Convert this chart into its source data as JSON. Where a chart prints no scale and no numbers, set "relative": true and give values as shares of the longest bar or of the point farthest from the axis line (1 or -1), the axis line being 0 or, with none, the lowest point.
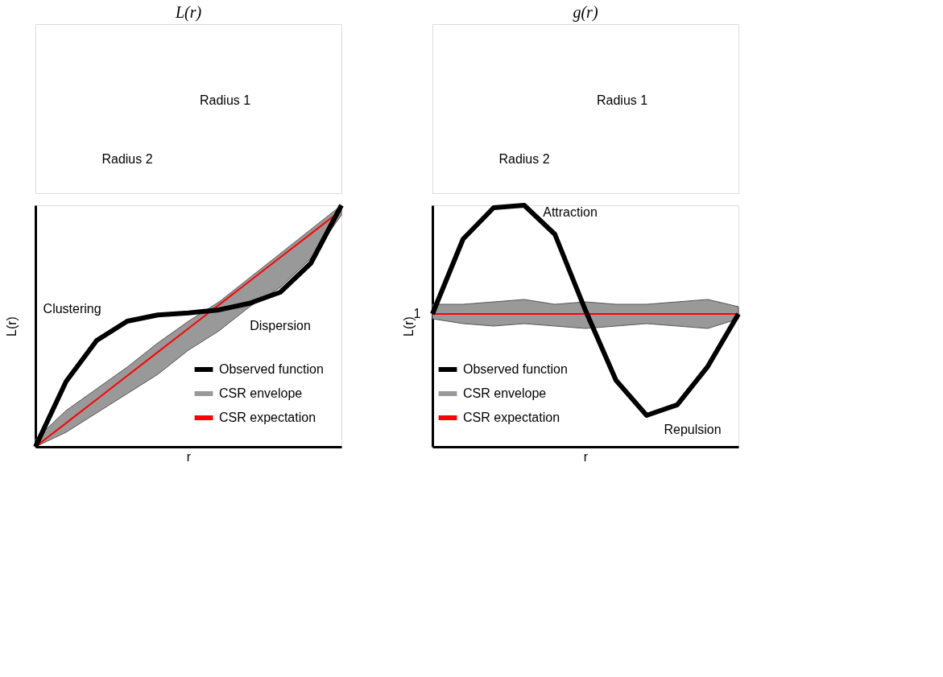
{
  "chart_data": [
    {
      "type": "other",
      "title": "L(r)",
      "annotations": [
        "Radius 1",
        "Radius 2"
      ]
    },
    {
      "type": "line",
      "relative": true,
      "xlabel": "r",
      "ylabel": "L(r)",
      "legend": "bottom right",
      "grid": false,
      "categories": [
        null,
        null,
        null,
        null,
        null,
        null,
        null,
        null,
        null,
        null,
        null
      ],
      "annotations": [
        "Clustering",
        "Dispersion"
      ],
      "series": [
        {
          "name": "Observed function",
          "color": "#000000",
          "values": [
            0,
            0.27,
            0.44,
            0.52,
            0.546,
            0.554,
            0.567,
            0.594,
            0.64,
            0.76,
            1.0
          ]
        },
        {
          "name": "CSR envelope",
          "type": "area",
          "color": "#999999",
          "values": [
            null,
            null,
            null,
            null,
            null,
            null,
            null,
            null,
            null,
            null,
            null
          ],
          "lower": [
            0,
            0.06,
            0.14,
            0.22,
            0.3,
            0.4,
            0.48,
            0.58,
            0.66,
            0.78,
            0.96
          ],
          "upper": [
            0.03,
            0.15,
            0.24,
            0.33,
            0.43,
            0.52,
            0.6,
            0.7,
            0.8,
            0.9,
            1.0
          ]
        },
        {
          "name": "CSR expectation",
          "color": "#ff0000",
          "values": [
            0,
            0.098,
            0.196,
            0.294,
            0.392,
            0.49,
            0.588,
            0.686,
            0.784,
            0.882,
            0.98
          ]
        }
      ]
    },
    {
      "type": "other",
      "title": "g(r)",
      "annotations": [
        "Radius 1",
        "Radius 2"
      ]
    },
    {
      "type": "line",
      "relative": true,
      "xlabel": "r",
      "ylabel": "L(r)",
      "legend": "bottom left",
      "grid": false,
      "categories": [
        null,
        null,
        null,
        null,
        null,
        null,
        null,
        null,
        null,
        null,
        null
      ],
      "annotations": [
        "Attraction",
        "Repulsion",
        "1"
      ],
      "series": [
        {
          "name": "Observed function",
          "color": "#000000",
          "values": [
            0.55,
            0.86,
            0.99,
            1.0,
            0.88,
            0.565,
            0.275,
            0.13,
            0.174,
            0.333,
            0.55
          ]
        },
        {
          "name": "CSR envelope",
          "type": "area",
          "color": "#999999",
          "values": [
            null,
            null,
            null,
            null,
            null,
            null,
            null,
            null,
            null,
            null,
            null
          ],
          "lower": [
            0.53,
            0.51,
            0.5,
            0.51,
            0.5,
            0.49,
            0.5,
            0.51,
            0.5,
            0.49,
            0.53
          ],
          "upper": [
            0.59,
            0.59,
            0.6,
            0.61,
            0.59,
            0.6,
            0.59,
            0.59,
            0.6,
            0.61,
            0.58
          ]
        },
        {
          "name": "CSR expectation",
          "color": "#ff0000",
          "values": [
            0.55,
            0.55,
            0.55,
            0.55,
            0.55,
            0.55,
            0.55,
            0.55,
            0.55,
            0.55,
            0.55
          ]
        }
      ]
    }
  ]
}
